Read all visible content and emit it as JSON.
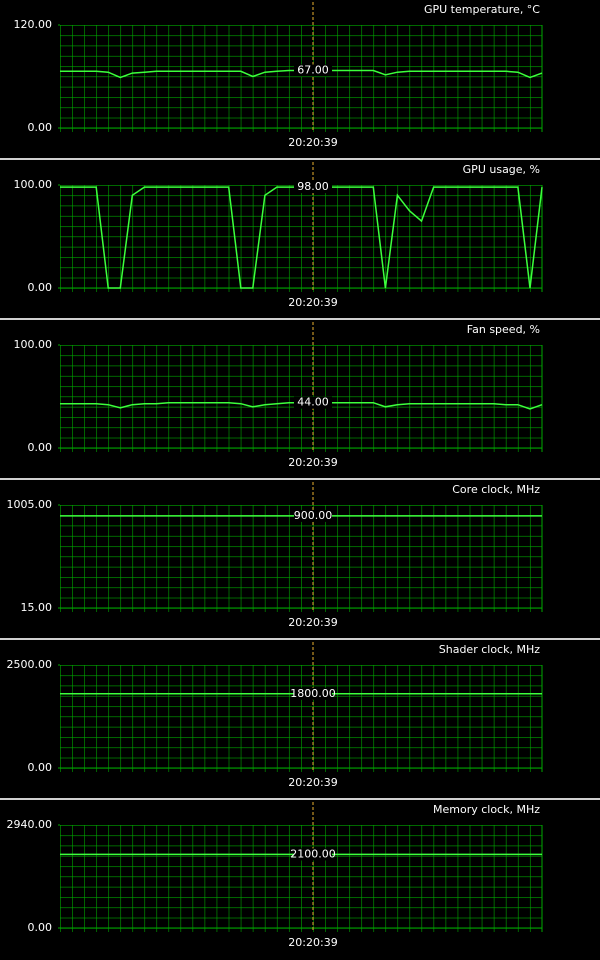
{
  "chart_data": [
    {
      "type": "line",
      "title": "GPU temperature, °C",
      "ylim": [
        0,
        120
      ],
      "yticks": [
        {
          "value": 0,
          "label": "0.00"
        },
        {
          "value": 120,
          "label": "120.00"
        }
      ],
      "color": "#3cff3c",
      "grid": true,
      "values": [
        66,
        66,
        66,
        66,
        65,
        59,
        64,
        65,
        66,
        66,
        66,
        66,
        66,
        66,
        66,
        66,
        60,
        65,
        66,
        67,
        67,
        67,
        67,
        67,
        67,
        67,
        67,
        62,
        65,
        66,
        66,
        66,
        66,
        66,
        66,
        66,
        66,
        66,
        65,
        59,
        64
      ],
      "cursor": {
        "value": 67,
        "label": "67.00",
        "time": "20:20:39"
      }
    },
    {
      "type": "line",
      "title": "GPU usage, %",
      "ylim": [
        0,
        100
      ],
      "yticks": [
        {
          "value": 0,
          "label": "0.00"
        },
        {
          "value": 100,
          "label": "100.00"
        }
      ],
      "color": "#3cff3c",
      "grid": true,
      "values": [
        98,
        98,
        98,
        98,
        0,
        0,
        90,
        98,
        98,
        98,
        98,
        98,
        98,
        98,
        98,
        0,
        0,
        90,
        98,
        98,
        98,
        98,
        98,
        98,
        98,
        98,
        98,
        0,
        90,
        75,
        65,
        98,
        98,
        98,
        98,
        98,
        98,
        98,
        98,
        0,
        98
      ],
      "cursor": {
        "value": 98,
        "label": "98.00",
        "time": "20:20:39"
      }
    },
    {
      "type": "line",
      "title": "Fan speed, %",
      "ylim": [
        0,
        100
      ],
      "yticks": [
        {
          "value": 0,
          "label": "0.00"
        },
        {
          "value": 100,
          "label": "100.00"
        }
      ],
      "color": "#3cff3c",
      "grid": true,
      "values": [
        43,
        43,
        43,
        43,
        42,
        39,
        42,
        43,
        43,
        44,
        44,
        44,
        44,
        44,
        44,
        43,
        40,
        42,
        43,
        44,
        44,
        44,
        44,
        44,
        44,
        44,
        44,
        40,
        42,
        43,
        43,
        43,
        43,
        43,
        43,
        43,
        43,
        42,
        42,
        38,
        42
      ],
      "cursor": {
        "value": 44,
        "label": "44.00",
        "time": "20:20:39"
      }
    },
    {
      "type": "line",
      "title": "Core clock, MHz",
      "ylim": [
        15,
        1005
      ],
      "yticks": [
        {
          "value": 15,
          "label": "15.00"
        },
        {
          "value": 1005,
          "label": "1005.00"
        }
      ],
      "color": "#3cff3c",
      "grid": true,
      "values": [
        900,
        900,
        900,
        900,
        900,
        900,
        900,
        900,
        900,
        900,
        900,
        900,
        900,
        900,
        900,
        900,
        900,
        900,
        900,
        900,
        900,
        900,
        900,
        900,
        900,
        900,
        900,
        900,
        900,
        900,
        900,
        900,
        900,
        900,
        900,
        900,
        900,
        900,
        900,
        900,
        900
      ],
      "cursor": {
        "value": 900,
        "label": "900.00",
        "time": "20:20:39"
      }
    },
    {
      "type": "line",
      "title": "Shader clock, MHz",
      "ylim": [
        0,
        2500
      ],
      "yticks": [
        {
          "value": 0,
          "label": "0.00"
        },
        {
          "value": 2500,
          "label": "2500.00"
        }
      ],
      "color": "#3cff3c",
      "grid": true,
      "values": [
        1800,
        1800,
        1800,
        1800,
        1800,
        1800,
        1800,
        1800,
        1800,
        1800,
        1800,
        1800,
        1800,
        1800,
        1800,
        1800,
        1800,
        1800,
        1800,
        1800,
        1800,
        1800,
        1800,
        1800,
        1800,
        1800,
        1800,
        1800,
        1800,
        1800,
        1800,
        1800,
        1800,
        1800,
        1800,
        1800,
        1800,
        1800,
        1800,
        1800,
        1800
      ],
      "cursor": {
        "value": 1800,
        "label": "1800.00",
        "time": "20:20:39"
      }
    },
    {
      "type": "line",
      "title": "Memory clock, MHz",
      "ylim": [
        0,
        2940
      ],
      "yticks": [
        {
          "value": 0,
          "label": "0.00"
        },
        {
          "value": 2940,
          "label": "2940.00"
        }
      ],
      "color": "#3cff3c",
      "grid": true,
      "values": [
        2100,
        2100,
        2100,
        2100,
        2100,
        2100,
        2100,
        2100,
        2100,
        2100,
        2100,
        2100,
        2100,
        2100,
        2100,
        2100,
        2100,
        2100,
        2100,
        2100,
        2100,
        2100,
        2100,
        2100,
        2100,
        2100,
        2100,
        2100,
        2100,
        2100,
        2100,
        2100,
        2100,
        2100,
        2100,
        2100,
        2100,
        2100,
        2100,
        2100,
        2100
      ],
      "cursor": {
        "value": 2100,
        "label": "2100.00",
        "time": "20:20:39"
      }
    }
  ]
}
